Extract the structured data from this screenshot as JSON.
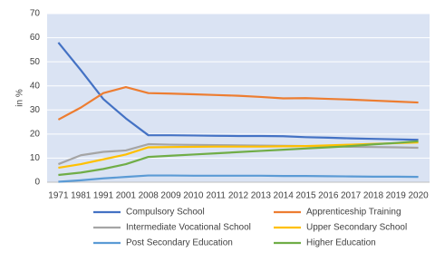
{
  "chart_data": {
    "type": "line",
    "y_label": "in %",
    "categories": [
      "1971",
      "1981",
      "1991",
      "2001",
      "2008",
      "2009",
      "2010",
      "2011",
      "2012",
      "2013",
      "2014",
      "2015",
      "2016",
      "2017",
      "2018",
      "2019",
      "2020"
    ],
    "ylim": [
      0,
      70
    ],
    "yticks": [
      0,
      10,
      20,
      30,
      40,
      50,
      60,
      70
    ],
    "grid": true,
    "series": [
      {
        "name": "Compulsory School",
        "color": "#4472c4",
        "values": [
          58,
          46.5,
          34.5,
          26.5,
          19.5,
          19.5,
          19.4,
          19.3,
          19.2,
          19.2,
          19.1,
          18.7,
          18.5,
          18.2,
          18,
          17.8,
          17.6
        ]
      },
      {
        "name": "Apprenticeship Training",
        "color": "#ed7d31",
        "values": [
          26,
          31,
          37,
          39.5,
          37,
          36.8,
          36.5,
          36.2,
          35.9,
          35.4,
          34.8,
          34.9,
          34.6,
          34.3,
          33.9,
          33.5,
          33.1
        ]
      },
      {
        "name": "Intermediate Vocational School",
        "color": "#a5a5a5",
        "values": [
          7.5,
          11.2,
          12.6,
          13.2,
          15.8,
          15.6,
          15.5,
          15.4,
          15.3,
          15.2,
          15.1,
          15,
          14.9,
          14.7,
          14.6,
          14.5,
          14.3
        ]
      },
      {
        "name": "Upper Secondary School",
        "color": "#ffc000",
        "values": [
          6,
          7.5,
          9.5,
          11.5,
          14.5,
          14.6,
          14.7,
          14.8,
          14.8,
          14.8,
          14.9,
          15,
          15.3,
          15.6,
          15.9,
          16.2,
          16.5
        ]
      },
      {
        "name": "Post Secondary Education",
        "color": "#5b9bd5",
        "values": [
          0.2,
          0.8,
          1.6,
          2.2,
          2.8,
          2.8,
          2.7,
          2.7,
          2.7,
          2.7,
          2.6,
          2.6,
          2.5,
          2.4,
          2.3,
          2.3,
          2.2
        ]
      },
      {
        "name": "Higher Education",
        "color": "#70ad47",
        "values": [
          3,
          4,
          5.5,
          7.5,
          10.5,
          11,
          11.5,
          12,
          12.5,
          13,
          13.5,
          14,
          14.5,
          15,
          15.7,
          16.3,
          17
        ]
      }
    ]
  }
}
